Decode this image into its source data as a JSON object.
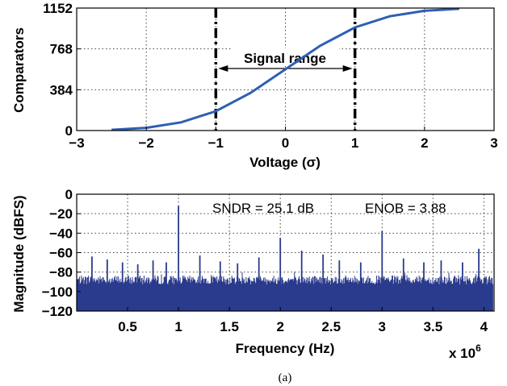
{
  "chart_data": [
    {
      "type": "line",
      "xlabel": "Voltage (σ)",
      "ylabel": "Comparators",
      "xlim": [
        -3,
        3
      ],
      "ylim": [
        0,
        1152
      ],
      "xticks": [
        "−3",
        "−2",
        "−1",
        "0",
        "1",
        "2",
        "3"
      ],
      "yticks": [
        "0",
        "384",
        "768",
        "1152"
      ],
      "grid": true,
      "color": "#2e5fb3",
      "series": [
        {
          "x": [
            -2.5,
            -2.0,
            -1.5,
            -1.0,
            -0.5,
            0.0,
            0.5,
            1.0,
            1.5,
            2.0,
            2.5
          ],
          "values": [
            7,
            26,
            77,
            182,
            355,
            576,
            797,
            970,
            1075,
            1126,
            1145
          ]
        }
      ],
      "annotations": {
        "marker_lines": [
          -1,
          1
        ],
        "signal_range_label": "Signal range"
      }
    },
    {
      "type": "bar",
      "xlabel": "Frequency (Hz)",
      "ylabel": "Magnitude (dBFS)",
      "xlim": [
        0,
        4.1
      ],
      "ylim": [
        -120,
        0
      ],
      "xticks": [
        "0.5",
        "1",
        "1.5",
        "2",
        "2.5",
        "3",
        "3.5",
        "4"
      ],
      "yticks": [
        "0",
        "−20",
        "−40",
        "−60",
        "−80",
        "−100",
        "−120"
      ],
      "x_multiplier": "x 10",
      "x_multiplier_exp": "6",
      "grid": true,
      "color": "#2a3a8c",
      "noise_floor_dBFS": -88,
      "spurs": {
        "x": [
          0.15,
          0.3,
          0.45,
          0.6,
          0.75,
          0.88,
          1.0,
          1.21,
          1.41,
          1.58,
          1.79,
          2.0,
          2.21,
          2.42,
          2.58,
          2.79,
          3.0,
          3.21,
          3.41,
          3.58,
          3.79,
          3.95
        ],
        "values": [
          -64,
          -67,
          -70,
          -72,
          -68,
          -70,
          -12,
          -63,
          -69,
          -71,
          -65,
          -45,
          -58,
          -62,
          -68,
          -70,
          -38,
          -66,
          -70,
          -68,
          -70,
          -56
        ]
      }
    }
  ],
  "annotations": {
    "sndr": "SNDR = 25.1 dB",
    "enob": "ENOB = 3.88"
  },
  "caption": "(a)"
}
